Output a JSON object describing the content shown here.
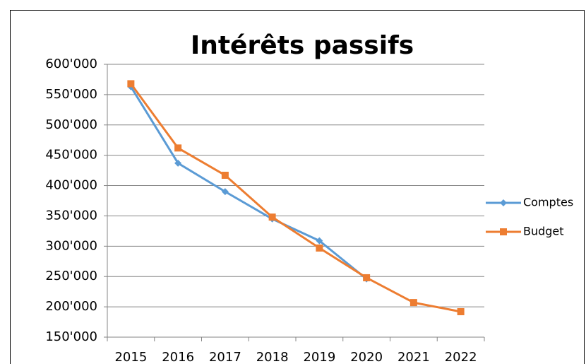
{
  "chart_data": {
    "type": "line",
    "title": "Intérêts passifs",
    "categories": [
      "2015",
      "2016",
      "2017",
      "2018",
      "2019",
      "2020",
      "2021",
      "2022"
    ],
    "series": [
      {
        "name": "Comptes",
        "color": "#5b9bd5",
        "marker": "diamond",
        "values": [
          563000,
          437000,
          390000,
          345000,
          309000,
          246000,
          null,
          null
        ]
      },
      {
        "name": "Budget",
        "color": "#ed7d31",
        "marker": "square",
        "values": [
          568000,
          462000,
          417000,
          348000,
          297000,
          248000,
          207000,
          192000
        ]
      }
    ],
    "ylim": [
      150000,
      600000
    ],
    "yticks": [
      {
        "value": 150000,
        "label": "150'000"
      },
      {
        "value": 200000,
        "label": "200'000"
      },
      {
        "value": 250000,
        "label": "250'000"
      },
      {
        "value": 300000,
        "label": "300'000"
      },
      {
        "value": 350000,
        "label": "350'000"
      },
      {
        "value": 400000,
        "label": "400'000"
      },
      {
        "value": 450000,
        "label": "450'000"
      },
      {
        "value": 500000,
        "label": "500'000"
      },
      {
        "value": 550000,
        "label": "550'000"
      },
      {
        "value": 600000,
        "label": "600'000"
      }
    ],
    "grid": true,
    "legend": "right"
  }
}
